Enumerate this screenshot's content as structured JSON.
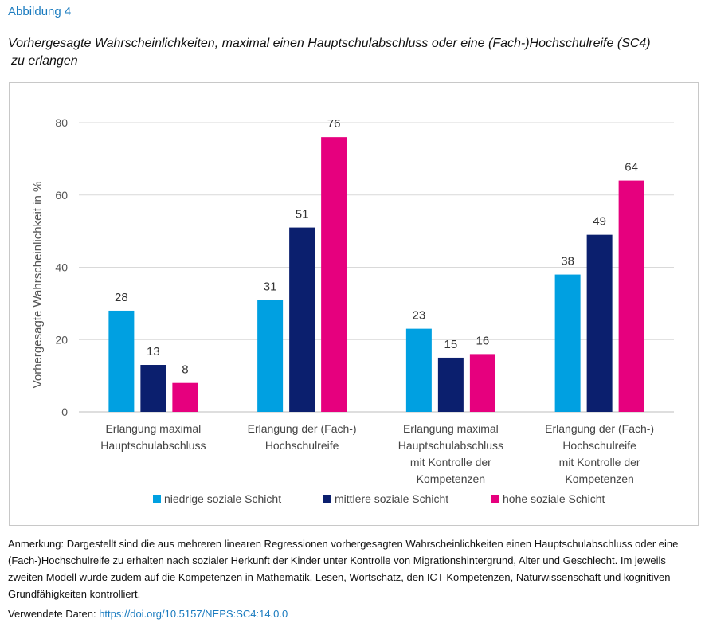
{
  "figure_label": "Abbildung 4",
  "title_line1": "Vorhergesagte Wahrscheinlichkeiten, maximal einen Hauptschulabschluss oder eine (Fach-)Hochschulreife (SC4)",
  "title_line2": "zu erlangen",
  "chart_data": {
    "type": "bar",
    "categories": [
      [
        "Erlangung maximal",
        "Hauptschulabschluss"
      ],
      [
        "Erlangung der (Fach-)",
        "Hochschulreife"
      ],
      [
        "Erlangung maximal",
        "Hauptschulabschluss",
        "mit Kontrolle der",
        "Kompetenzen"
      ],
      [
        "Erlangung der (Fach-)",
        "Hochschulreife",
        "mit Kontrolle der",
        "Kompetenzen"
      ]
    ],
    "series": [
      {
        "name": "niedrige soziale Schicht",
        "color": "#00a0e1",
        "values": [
          28,
          31,
          23,
          38
        ]
      },
      {
        "name": "mittlere soziale Schicht",
        "color": "#0b1f6e",
        "values": [
          13,
          51,
          15,
          49
        ]
      },
      {
        "name": "hohe soziale Schicht",
        "color": "#e6007e",
        "values": [
          8,
          76,
          16,
          64
        ]
      }
    ],
    "ylabel": "Vorhergesagte Wahrscheinlichkeit in %",
    "xlabel": "",
    "ylim": [
      0,
      80
    ],
    "yticks": [
      0,
      20,
      40,
      60,
      80
    ],
    "grid": true,
    "legend_position": "bottom"
  },
  "note": "Anmerkung: Dargestellt sind die aus mehreren linearen Regressionen vorhergesagten Wahrscheinlichkeiten einen Hauptschulabschluss oder eine (Fach-)Hochschulreife zu erhalten nach sozialer Herkunft der Kinder unter Kontrolle von Migrationshintergrund, Alter und Geschlecht. Im jeweils zweiten Modell wurde zudem auf die Kompetenzen in Mathematik, Lesen, Wortschatz, den ICT-Kompetenzen, Naturwissenschaft und kognitiven Grundfähigkeiten kontrolliert.",
  "source_label": "Verwendete Daten:",
  "source_link": "https://doi.org/10.5157/NEPS:SC4:14.0.0"
}
